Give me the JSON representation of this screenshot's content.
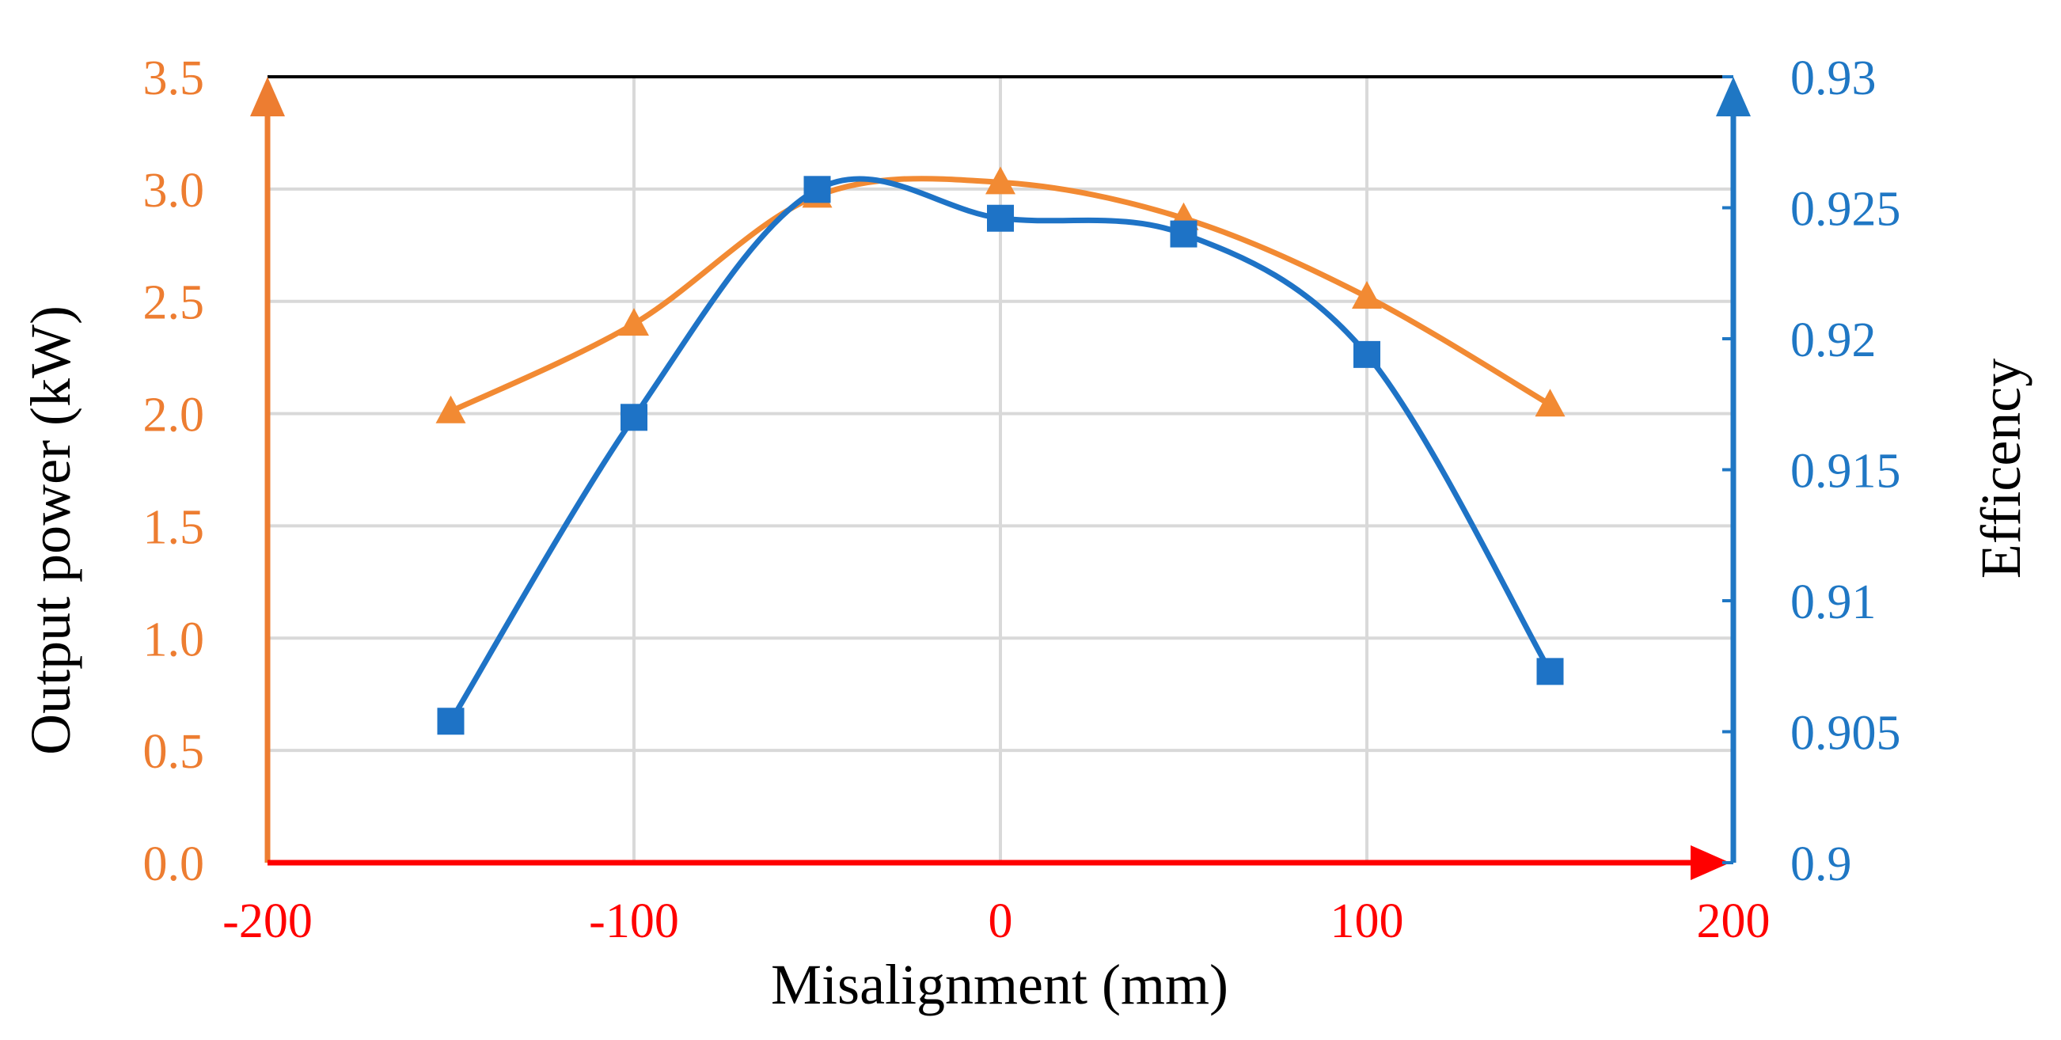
{
  "chart_data": {
    "type": "line",
    "title": "",
    "xlabel": "Misalignment (mm)",
    "ylabel_left": "Output power (kW)",
    "ylabel_right": "Efficency",
    "xlim": [
      -200,
      200
    ],
    "ylim_left": [
      0,
      3.5
    ],
    "ylim_right": [
      0.9,
      0.93
    ],
    "x_ticks": [
      "-200",
      "-100",
      "0",
      "100",
      "200"
    ],
    "y_left_ticks": [
      "0.0",
      "0.5",
      "1.0",
      "1.5",
      "2.0",
      "2.5",
      "3.0",
      "3.5"
    ],
    "y_right_ticks": [
      "0.9",
      "0.905",
      "0.91",
      "0.915",
      "0.92",
      "0.925",
      "0.93"
    ],
    "grid": true,
    "series": [
      {
        "name": "Output power",
        "axis": "left",
        "marker": "triangle",
        "smooth": true,
        "x": [
          -150,
          -100,
          -50,
          0,
          50,
          100,
          150
        ],
        "values": [
          2.01,
          2.4,
          2.97,
          3.03,
          2.87,
          2.52,
          2.04
        ]
      },
      {
        "name": "Efficency",
        "axis": "right",
        "marker": "square",
        "smooth": true,
        "x": [
          -150,
          -100,
          -50,
          0,
          50,
          100,
          150
        ],
        "values": [
          0.9054,
          0.917,
          0.9257,
          0.9246,
          0.924,
          0.9194,
          0.9073
        ]
      }
    ],
    "colors": {
      "left_axis": "#ED7D31",
      "left_series": "#F28A33",
      "right_axis": "#1F77C4",
      "right_series": "#1E73C6",
      "x_axis": "#FF0000",
      "top_border": "#000000",
      "grid": "#D9D9D9"
    }
  }
}
